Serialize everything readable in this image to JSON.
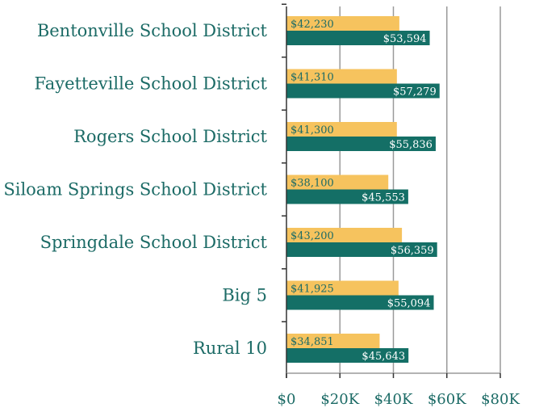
{
  "chart_data": {
    "type": "bar",
    "orientation": "horizontal",
    "title": "",
    "xlabel": "",
    "ylabel": "",
    "categories": [
      "Bentonville School District",
      "Fayetteville School District",
      "Rogers School District",
      "Siloam Springs School District",
      "Springdale School District",
      "Big 5",
      "Rural 10"
    ],
    "series": [
      {
        "color": "#f6c35e",
        "values": [
          42230,
          41310,
          41300,
          38100,
          43200,
          41925,
          34851
        ],
        "labels": [
          "$42,230",
          "$41,310",
          "$41,300",
          "$38,100",
          "$43,200",
          "$41,925",
          "$34,851"
        ]
      },
      {
        "color": "#146f66",
        "values": [
          53594,
          57279,
          55836,
          45553,
          56359,
          55094,
          45643
        ],
        "labels": [
          "$53,594",
          "$57,279",
          "$55,836",
          "$45,553",
          "$56,359",
          "$55,094",
          "$45,643"
        ]
      }
    ],
    "xlim": [
      0,
      80000
    ],
    "xticks": [
      0,
      20000,
      40000,
      60000,
      80000
    ],
    "xtick_labels": [
      "$0",
      "$20K",
      "$40K",
      "$60K",
      "$80K"
    ],
    "grid": true,
    "legend": "none"
  }
}
